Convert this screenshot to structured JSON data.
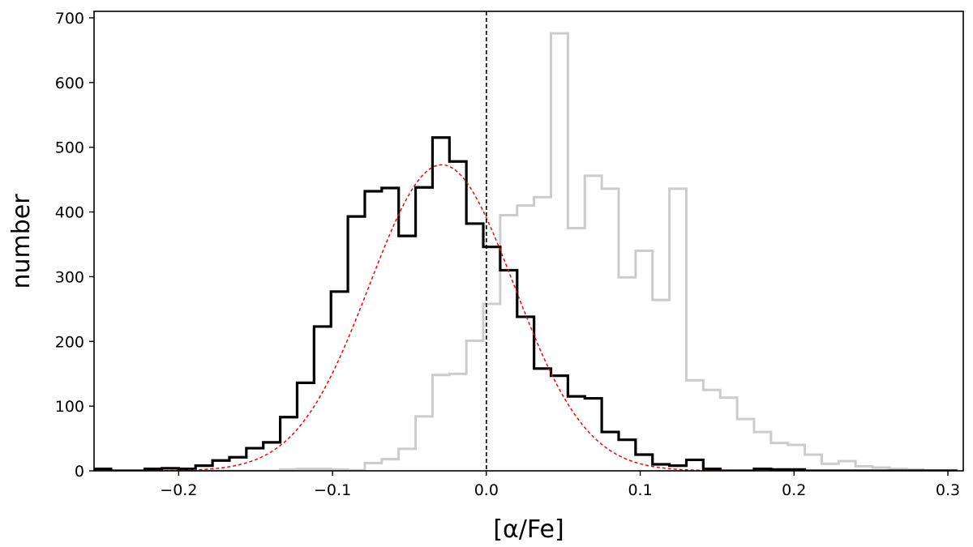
{
  "chart_data": {
    "type": "histogram",
    "title": "",
    "xlabel": "[α/Fe]",
    "ylabel": "number",
    "xlim": [
      -0.255,
      0.31
    ],
    "ylim": [
      0,
      710
    ],
    "xticks": [
      -0.2,
      -0.1,
      0.0,
      0.1,
      0.2,
      0.3
    ],
    "xtick_labels": [
      "−0.2",
      "−0.1",
      "0.0",
      "0.1",
      "0.2",
      "0.3"
    ],
    "yticks": [
      0,
      100,
      200,
      300,
      400,
      500,
      600,
      700
    ],
    "ytick_labels": [
      "0",
      "100",
      "200",
      "300",
      "400",
      "500",
      "600",
      "700"
    ],
    "grid": false,
    "vline": {
      "x": 0.0,
      "style": "dashed",
      "color": "#000000"
    },
    "series": [
      {
        "kind": "step-histogram",
        "color": "#cccccc",
        "bin_edges": [
          -0.255,
          -0.244,
          -0.233,
          -0.222,
          -0.211,
          -0.2,
          -0.189,
          -0.178,
          -0.167,
          -0.156,
          -0.145,
          -0.134,
          -0.123,
          -0.112,
          -0.101,
          -0.09,
          -0.079,
          -0.068,
          -0.057,
          -0.046,
          -0.035,
          -0.024,
          -0.013,
          -0.002,
          0.009,
          0.02,
          0.031,
          0.042,
          0.053,
          0.064,
          0.075,
          0.086,
          0.097,
          0.108,
          0.119,
          0.13,
          0.141,
          0.152,
          0.163,
          0.174,
          0.185,
          0.196,
          0.207,
          0.218,
          0.229,
          0.24,
          0.251,
          0.262,
          0.273,
          0.284,
          0.295,
          0.306
        ],
        "counts": [
          0,
          0,
          0,
          0,
          0,
          0,
          0,
          0,
          0,
          0,
          0,
          2,
          3,
          3,
          2,
          1,
          12,
          18,
          34,
          84,
          148,
          150,
          201,
          258,
          395,
          410,
          423,
          676,
          375,
          456,
          436,
          299,
          340,
          264,
          436,
          140,
          125,
          113,
          80,
          60,
          43,
          40,
          25,
          11,
          15,
          7,
          5,
          3,
          2,
          1,
          1
        ]
      },
      {
        "kind": "step-histogram",
        "color": "#000000",
        "bin_edges": [
          -0.255,
          -0.244,
          -0.233,
          -0.222,
          -0.211,
          -0.2,
          -0.189,
          -0.178,
          -0.167,
          -0.156,
          -0.145,
          -0.134,
          -0.123,
          -0.112,
          -0.101,
          -0.09,
          -0.079,
          -0.068,
          -0.057,
          -0.046,
          -0.035,
          -0.024,
          -0.013,
          -0.002,
          0.009,
          0.02,
          0.031,
          0.042,
          0.053,
          0.064,
          0.075,
          0.086,
          0.097,
          0.108,
          0.119,
          0.13,
          0.141,
          0.152,
          0.163,
          0.174,
          0.185,
          0.196,
          0.207,
          0.218,
          0.229,
          0.24,
          0.251,
          0.262,
          0.273,
          0.284,
          0.295,
          0.306
        ],
        "counts": [
          3,
          0,
          0,
          3,
          4,
          3,
          8,
          16,
          21,
          35,
          44,
          83,
          136,
          223,
          277,
          393,
          432,
          437,
          363,
          438,
          515,
          478,
          382,
          346,
          310,
          238,
          158,
          147,
          115,
          112,
          60,
          48,
          25,
          10,
          8,
          17,
          3,
          0,
          0,
          3,
          2,
          2,
          0,
          0,
          0,
          0,
          0,
          0,
          0,
          0,
          0
        ]
      },
      {
        "kind": "gaussian-fit",
        "color": "#ff0000",
        "style": "dashed",
        "amplitude": 473,
        "mu": -0.029,
        "sigma": 0.047,
        "x_range": [
          -0.22,
          0.16
        ]
      }
    ]
  }
}
